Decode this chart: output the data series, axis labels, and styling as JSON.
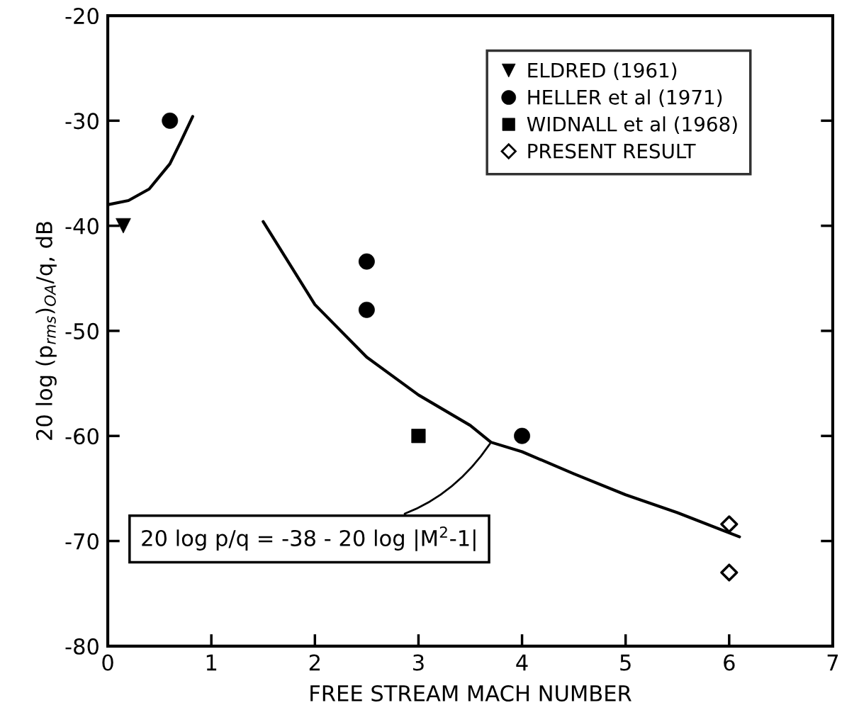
{
  "chart_data": {
    "type": "scatter",
    "xlabel": "FREE STREAM MACH NUMBER",
    "ylabel": "20 log (p$_{rms}$)$_{OA}$/q, dB",
    "xlim": [
      0,
      7
    ],
    "xticks": [
      0,
      1,
      2,
      3,
      4,
      5,
      6,
      7
    ],
    "ylim": [
      -80,
      -20
    ],
    "yticks": [
      -80,
      -70,
      -60,
      -50,
      -40,
      -30,
      -20
    ],
    "grid": false,
    "legend": "top right",
    "series": [
      {
        "name": "ELDRED (1961)",
        "marker": "triangle",
        "color": "#000000",
        "x": [
          0.15
        ],
        "values": [
          -40
        ]
      },
      {
        "name": "HELLER et al (1971)",
        "marker": "circle",
        "color": "#000000",
        "x": [
          0.6,
          2.5,
          2.5,
          4.0
        ],
        "values": [
          -30,
          -43.4,
          -48,
          -60
        ]
      },
      {
        "name": "WIDNALL et al (1968)",
        "marker": "square",
        "color": "#000000",
        "x": [
          3.0
        ],
        "values": [
          -60
        ]
      },
      {
        "name": "PRESENT RESULT",
        "marker": "diamond",
        "color": "#000000",
        "x": [
          6.0,
          6.0
        ],
        "values": [
          -68.4,
          -73
        ]
      },
      {
        "type": "line",
        "marker": "none",
        "line_style": "solid",
        "color": "#000000",
        "x": [
          0,
          0.2,
          0.4,
          0.6,
          0.7,
          0.82
        ],
        "values": [
          -38,
          -37.6,
          -36.5,
          -34.1,
          -32.1,
          -29.6
        ]
      },
      {
        "type": "line",
        "marker": "none",
        "line_style": "solid",
        "color": "#000000",
        "x": [
          1.5,
          2,
          2.5,
          3,
          3.5,
          3.7,
          4,
          4.5,
          5,
          5.5,
          6.1
        ],
        "values": [
          -39.6,
          -47.5,
          -52.5,
          -56.1,
          -59,
          -60.6,
          -61.5,
          -63.6,
          -65.6,
          -67.3,
          -69.6
        ]
      }
    ],
    "annotations": [
      {
        "text": "20 log p/q = -38 - 20 log |M$^{2}$-1|",
        "x": 3.7,
        "y": -60.6
      }
    ]
  }
}
